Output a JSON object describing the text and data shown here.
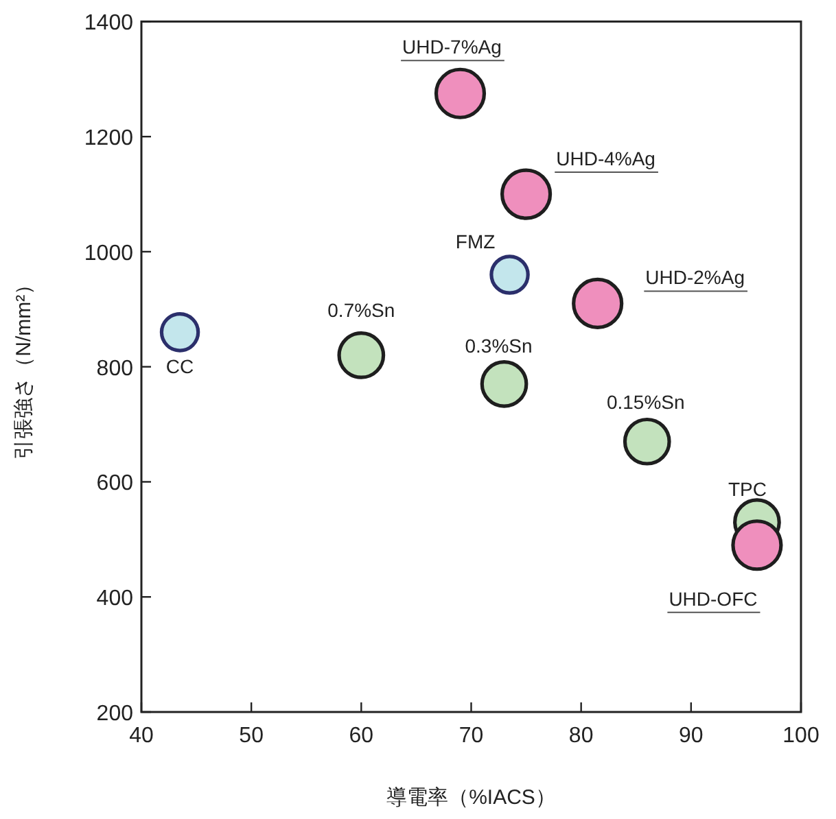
{
  "chart_data": {
    "type": "bubble",
    "xlabel": "導電率（%IACS）",
    "ylabel": "引張強さ（N/mm²）",
    "xlim": [
      40,
      100
    ],
    "xticks": [
      40,
      50,
      60,
      70,
      80,
      90,
      100
    ],
    "ylim": [
      200,
      1400
    ],
    "yticks": [
      200,
      400,
      600,
      800,
      1000,
      1200,
      1400
    ],
    "grid": false,
    "series": [
      {
        "color": "#c3e2bd",
        "x": [
          60,
          73,
          86,
          96
        ],
        "values": [
          820,
          770,
          670,
          530
        ],
        "sizes": [
          0.85,
          0.85,
          0.85,
          0.85
        ]
      },
      {
        "color": "#c3e6ec",
        "x": [
          43.5,
          73.5
        ],
        "values": [
          860,
          960
        ],
        "sizes": [
          0.58,
          0.58
        ]
      },
      {
        "color": "#ef8fbd",
        "x": [
          69,
          75,
          81.5,
          96
        ],
        "values": [
          1275,
          1100,
          910,
          490
        ],
        "sizes": [
          1,
          1,
          1,
          1
        ]
      }
    ],
    "annotations": [
      {
        "text": "UHD-7%Ag",
        "x": 69,
        "y": 1275
      },
      {
        "text": "UHD-4%Ag",
        "x": 75,
        "y": 1100
      },
      {
        "text": "FMZ",
        "x": 73.5,
        "y": 960
      },
      {
        "text": "UHD-2%Ag",
        "x": 81.5,
        "y": 910
      },
      {
        "text": "CC",
        "x": 43.5,
        "y": 860
      },
      {
        "text": "0.7%Sn",
        "x": 60,
        "y": 820
      },
      {
        "text": "0.3%Sn",
        "x": 73,
        "y": 770
      },
      {
        "text": "0.15%Sn",
        "x": 86,
        "y": 670
      },
      {
        "text": "TPC",
        "x": 96,
        "y": 530
      },
      {
        "text": "UHD-OFC",
        "x": 96,
        "y": 490
      }
    ]
  }
}
